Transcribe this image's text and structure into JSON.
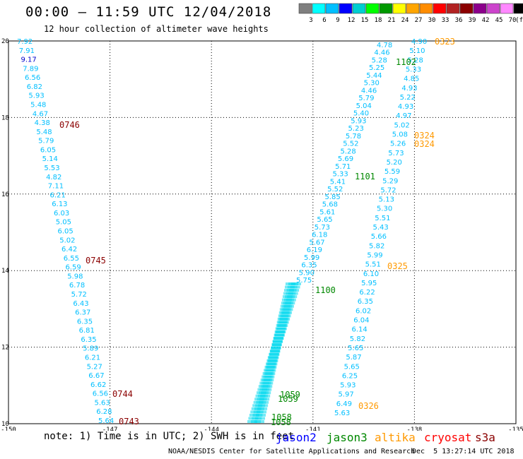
{
  "title": "00:00 – 11:59 UTC 12/04/2018",
  "subtitle": "12 hour collection of altimeter wave heights",
  "colorbar": {
    "colors": [
      "#7f7f7f",
      "#00ffff",
      "#00bfff",
      "#0000ff",
      "#00ced1",
      "#00ff00",
      "#009900",
      "#ffff00",
      "#ffa500",
      "#ff8c00",
      "#ff0000",
      "#b22222",
      "#8b0000",
      "#8b008b",
      "#cc44cc",
      "#ff88ff",
      "#000000"
    ],
    "labels": [
      "3",
      "6",
      "9",
      "12",
      "15",
      "18",
      "21",
      "24",
      "27",
      "30",
      "33",
      "36",
      "39",
      "42",
      "45",
      "70",
      "(ft)"
    ]
  },
  "axes": {
    "x_ticks": [
      -150,
      -147,
      -144,
      -141,
      -138,
      -135
    ],
    "x_labels": [
      "-150",
      "-147",
      "-144",
      "-141",
      "-138",
      "-135"
    ],
    "y_ticks": [
      10,
      12,
      14,
      16,
      18,
      20
    ],
    "y_labels": [
      "10",
      "12",
      "14",
      "16",
      "18",
      "20"
    ]
  },
  "tracks": [
    {
      "id": "west",
      "color": "#00bfff",
      "labels": [
        "7.92",
        "7.91",
        "9.17",
        "7.89",
        "6.56",
        "6.82",
        "5.93",
        "5.48",
        "4.67",
        "4.38",
        "5.48",
        "5.79",
        "6.05",
        "5.14",
        "5.53",
        "4.82",
        "7.11",
        "6.21",
        "6.13",
        "6.03",
        "5.05",
        "6.05",
        "5.02",
        "6.42",
        "6.55",
        "6.59",
        "5.98",
        "6.78",
        "5.72",
        "6.43",
        "6.37",
        "6.35",
        "6.81",
        "6.35",
        "5.89",
        "6.21",
        "5.27",
        "6.67",
        "6.62",
        "6.56",
        "5.63",
        "6.28",
        "5.64"
      ],
      "colors": {
        "2": "#0000cc"
      }
    },
    {
      "id": "mid",
      "color": "#00bfff",
      "labels": [
        "4.78",
        "4.46",
        "5.28",
        "5.25",
        "5.44",
        "5.30",
        "4.46",
        "5.79",
        "5.04",
        "5.40",
        "5.93",
        "5.23",
        "5.78",
        "5.52",
        "5.28",
        "5.69",
        "5.71",
        "5.33",
        "5.41",
        "5.52",
        "5.85",
        "5.68",
        "5.61",
        "5.65",
        "5.73",
        "6.18",
        "5.67",
        "6.19",
        "5.99",
        "6.35",
        "5.90",
        "5.75"
      ]
    },
    {
      "id": "east",
      "color": "#00bfff",
      "labels": [
        "4.90",
        "5.10",
        "5.28",
        "5.33",
        "4.85",
        "4.93",
        "5.22",
        "4.93",
        "4.97",
        "5.02",
        "5.08",
        "5.26",
        "5.73",
        "5.20",
        "5.59",
        "5.29",
        "5.72",
        "5.13",
        "5.30",
        "5.51",
        "5.43",
        "5.66",
        "5.82",
        "5.99",
        "5.51",
        "6.10",
        "5.95",
        "6.22",
        "6.35",
        "6.02",
        "6.04",
        "6.14",
        "5.82",
        "5.65",
        "5.87",
        "5.65",
        "6.25",
        "5.93",
        "5.97",
        "6.49",
        "5.63"
      ]
    }
  ],
  "times": [
    {
      "text": "0746",
      "color": "#8b0000"
    },
    {
      "text": "0745",
      "color": "#8b0000"
    },
    {
      "text": "0744",
      "color": "#8b0000"
    },
    {
      "text": "0743",
      "color": "#8b0000"
    },
    {
      "text": "1102",
      "color": "#008800"
    },
    {
      "text": "1101",
      "color": "#008800"
    },
    {
      "text": "1100",
      "color": "#008800"
    },
    {
      "text": "1059",
      "color": "#008800"
    },
    {
      "text": "1059",
      "color": "#008800"
    },
    {
      "text": "1058",
      "color": "#008800"
    },
    {
      "text": "1058",
      "color": "#008800"
    },
    {
      "text": "0323",
      "color": "#ff9900"
    },
    {
      "text": "0324",
      "color": "#ff9900"
    },
    {
      "text": "0324",
      "color": "#ff9900"
    },
    {
      "text": "0325",
      "color": "#ff9900"
    },
    {
      "text": "0326",
      "color": "#ff9900"
    }
  ],
  "footer": {
    "note": "note: 1) Time is in UTC; 2) SWH is in feet",
    "legend": [
      {
        "name": "jason2",
        "color": "#0000ff"
      },
      {
        "name": "jason3",
        "color": "#008800"
      },
      {
        "name": "altika",
        "color": "#ff9900"
      },
      {
        "name": "cryosat",
        "color": "#ff0000"
      },
      {
        "name": "s3a",
        "color": "#8b0000"
      }
    ],
    "credit": "NOAA/NESDIS Center for Satellite Applications and Research",
    "date": "Dec  5 13:27:14 UTC 2018"
  }
}
